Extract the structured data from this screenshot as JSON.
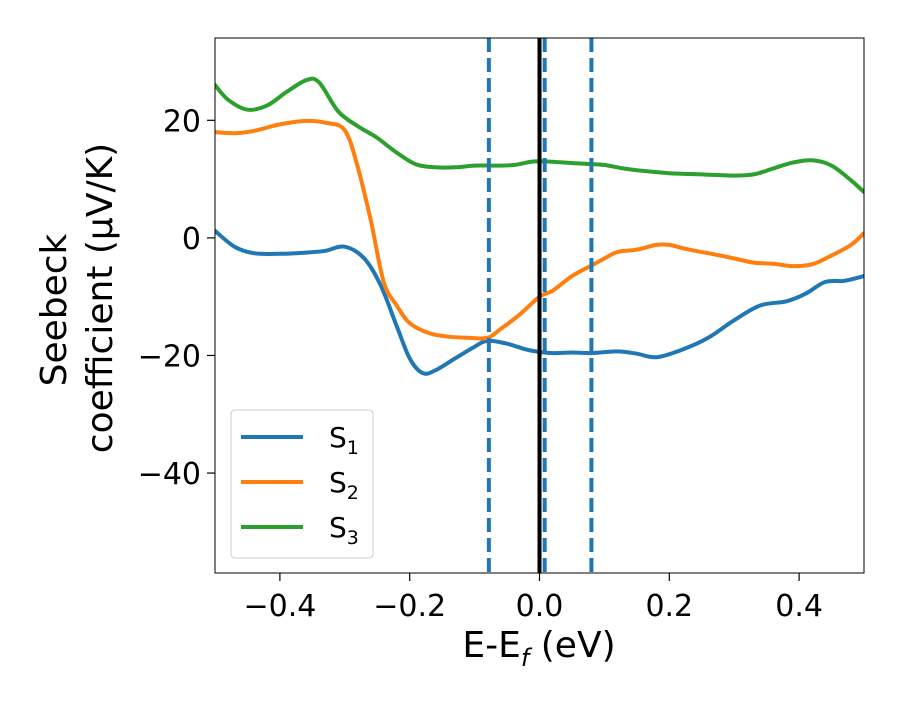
{
  "chart_data": {
    "type": "line",
    "xlabel": {
      "main": "E-E",
      "sub": "f",
      "unit": " (eV)"
    },
    "ylabel": {
      "line1": "Seebeck",
      "line2": "coefficient  (μV/K)"
    },
    "xlim": [
      -0.5,
      0.5
    ],
    "ylim": [
      -57,
      34
    ],
    "xticks": [
      -0.4,
      -0.2,
      0.0,
      0.2,
      0.4
    ],
    "xtick_labels": [
      "−0.4",
      "−0.2",
      "0.0",
      "0.2",
      "0.4"
    ],
    "yticks": [
      20,
      0,
      -20,
      -40
    ],
    "ytick_labels": [
      "20",
      "0",
      "−20",
      "−40"
    ],
    "grid": false,
    "legend_position": "lower-left",
    "vlines": [
      {
        "x": 0.0,
        "style": "solid",
        "color": "#000000"
      },
      {
        "x": -0.078,
        "style": "dashed",
        "color": "#1f77b4"
      },
      {
        "x": 0.008,
        "style": "dashed",
        "color": "#1f77b4"
      },
      {
        "x": 0.08,
        "style": "dashed",
        "color": "#1f77b4"
      }
    ],
    "series": [
      {
        "name": "S",
        "sub": "1",
        "color": "#1f77b4",
        "points": [
          [
            -0.5,
            1.2
          ],
          [
            -0.47,
            -1.5
          ],
          [
            -0.44,
            -2.6
          ],
          [
            -0.4,
            -2.7
          ],
          [
            -0.36,
            -2.5
          ],
          [
            -0.33,
            -2.2
          ],
          [
            -0.3,
            -1.5
          ],
          [
            -0.27,
            -3.5
          ],
          [
            -0.245,
            -8
          ],
          [
            -0.22,
            -15
          ],
          [
            -0.2,
            -20.5
          ],
          [
            -0.18,
            -23
          ],
          [
            -0.16,
            -22.5
          ],
          [
            -0.13,
            -20.5
          ],
          [
            -0.1,
            -18.5
          ],
          [
            -0.08,
            -17.5
          ],
          [
            -0.05,
            -18
          ],
          [
            -0.02,
            -19
          ],
          [
            0.0,
            -19.4
          ],
          [
            0.02,
            -19.6
          ],
          [
            0.05,
            -19.5
          ],
          [
            0.08,
            -19.6
          ],
          [
            0.12,
            -19.3
          ],
          [
            0.15,
            -19.7
          ],
          [
            0.18,
            -20.3
          ],
          [
            0.22,
            -19
          ],
          [
            0.26,
            -17
          ],
          [
            0.3,
            -14
          ],
          [
            0.34,
            -11.5
          ],
          [
            0.38,
            -10.8
          ],
          [
            0.41,
            -9.5
          ],
          [
            0.44,
            -7.5
          ],
          [
            0.47,
            -7.3
          ],
          [
            0.5,
            -6.5
          ]
        ]
      },
      {
        "name": "S",
        "sub": "2",
        "color": "#ff7f0e",
        "points": [
          [
            -0.5,
            18
          ],
          [
            -0.47,
            17.8
          ],
          [
            -0.44,
            18.2
          ],
          [
            -0.4,
            19.3
          ],
          [
            -0.36,
            19.9
          ],
          [
            -0.33,
            19.6
          ],
          [
            -0.3,
            18.3
          ],
          [
            -0.28,
            12
          ],
          [
            -0.26,
            3
          ],
          [
            -0.24,
            -7.5
          ],
          [
            -0.22,
            -11.5
          ],
          [
            -0.2,
            -14.5
          ],
          [
            -0.17,
            -16.2
          ],
          [
            -0.14,
            -16.8
          ],
          [
            -0.11,
            -17
          ],
          [
            -0.08,
            -17
          ],
          [
            -0.06,
            -15.5
          ],
          [
            -0.03,
            -13
          ],
          [
            0.0,
            -10
          ],
          [
            0.02,
            -9
          ],
          [
            0.05,
            -6.5
          ],
          [
            0.08,
            -4.7
          ],
          [
            0.1,
            -3.5
          ],
          [
            0.12,
            -2.4
          ],
          [
            0.15,
            -2
          ],
          [
            0.18,
            -1.2
          ],
          [
            0.2,
            -1.2
          ],
          [
            0.23,
            -2
          ],
          [
            0.27,
            -2.8
          ],
          [
            0.3,
            -3.5
          ],
          [
            0.33,
            -4.2
          ],
          [
            0.36,
            -4.4
          ],
          [
            0.39,
            -4.8
          ],
          [
            0.42,
            -4.5
          ],
          [
            0.45,
            -3
          ],
          [
            0.48,
            -1.2
          ],
          [
            0.5,
            0.8
          ]
        ]
      },
      {
        "name": "S",
        "sub": "3",
        "color": "#2ca02c",
        "points": [
          [
            -0.5,
            26
          ],
          [
            -0.48,
            23.5
          ],
          [
            -0.45,
            21.8
          ],
          [
            -0.42,
            22.5
          ],
          [
            -0.39,
            24.8
          ],
          [
            -0.36,
            26.8
          ],
          [
            -0.34,
            26.5
          ],
          [
            -0.31,
            21.5
          ],
          [
            -0.28,
            19
          ],
          [
            -0.25,
            17
          ],
          [
            -0.22,
            14.5
          ],
          [
            -0.19,
            12.5
          ],
          [
            -0.16,
            12
          ],
          [
            -0.13,
            12
          ],
          [
            -0.1,
            12.3
          ],
          [
            -0.07,
            12.3
          ],
          [
            -0.04,
            12.4
          ],
          [
            -0.01,
            13
          ],
          [
            0.01,
            13
          ],
          [
            0.04,
            12.8
          ],
          [
            0.07,
            12.6
          ],
          [
            0.1,
            12.4
          ],
          [
            0.13,
            11.8
          ],
          [
            0.16,
            11.4
          ],
          [
            0.2,
            11
          ],
          [
            0.25,
            10.8
          ],
          [
            0.3,
            10.6
          ],
          [
            0.33,
            10.8
          ],
          [
            0.36,
            11.8
          ],
          [
            0.39,
            12.8
          ],
          [
            0.42,
            13.2
          ],
          [
            0.45,
            12.3
          ],
          [
            0.48,
            9.8
          ],
          [
            0.5,
            7.8
          ]
        ]
      }
    ]
  }
}
